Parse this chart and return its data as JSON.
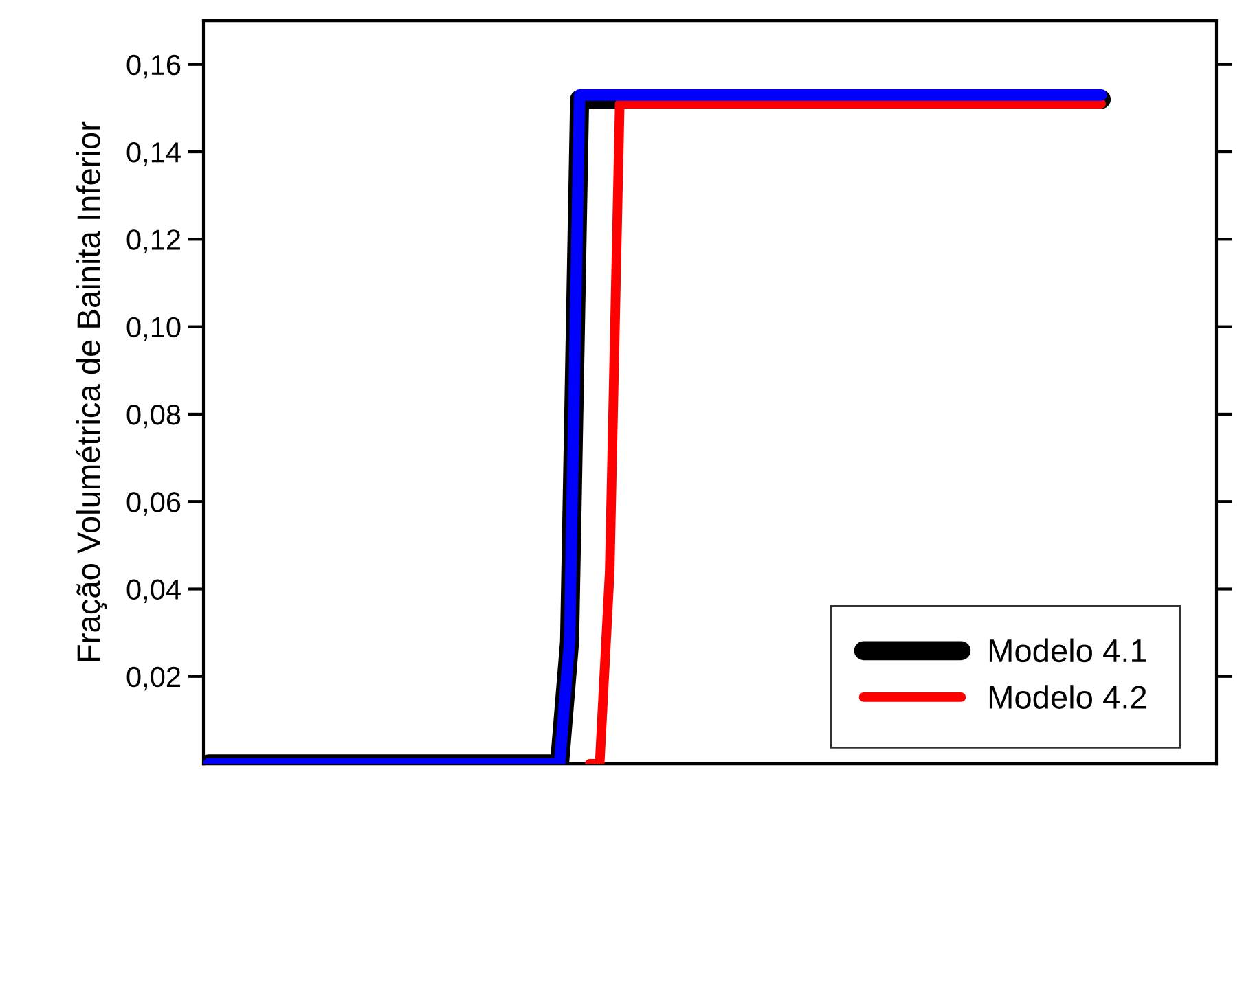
{
  "chart_data": {
    "type": "line",
    "ylabel": "Fração Volumétrica de Bainita Inferior",
    "categories": [
      null,
      null,
      null,
      null,
      null,
      null,
      null,
      null,
      null,
      null,
      null,
      null,
      null,
      null,
      null,
      null,
      null,
      null,
      null,
      null,
      null,
      null,
      null,
      null,
      null,
      null,
      null,
      null,
      null,
      null,
      null,
      null,
      null,
      null,
      null,
      null,
      null,
      null,
      null,
      null,
      null,
      null,
      null,
      null,
      null,
      null,
      null,
      null,
      null,
      null,
      null,
      null,
      null,
      null,
      null,
      null,
      null,
      null,
      null,
      null,
      null,
      null,
      null,
      null,
      null,
      null,
      null,
      null,
      null,
      null,
      null,
      null,
      null,
      null,
      null,
      null,
      null,
      null,
      null,
      null,
      null,
      null,
      null,
      null,
      null,
      null,
      null,
      null,
      null,
      null,
      null,
      null,
      null,
      null,
      null,
      null,
      null,
      null,
      null,
      null,
      null
    ],
    "series": [
      {
        "name": "Modelo 4.1",
        "color": "#000000",
        "values": [
          0,
          0,
          0,
          0,
          0,
          0,
          0,
          0,
          0,
          0,
          0,
          0,
          0,
          0,
          0,
          0,
          0,
          0,
          0,
          0,
          0,
          0,
          0,
          0,
          0,
          0,
          0,
          0,
          0,
          0,
          0,
          0,
          0,
          0,
          0,
          0,
          0.028,
          0.152,
          0.152,
          0.152,
          0.152,
          0.152,
          0.152,
          0.152,
          0.152,
          0.152,
          0.152,
          0.152,
          0.152,
          0.152,
          0.152,
          0.152,
          0.152,
          0.152,
          0.152,
          0.152,
          0.152,
          0.152,
          0.152,
          0.152,
          0.152,
          0.152,
          0.152,
          0.152,
          0.152,
          0.152,
          0.152,
          0.152,
          0.152,
          0.152,
          0.152,
          0.152,
          0.152,
          0.152,
          0.152,
          0.152,
          0.152,
          0.152,
          0.152,
          0.152,
          0.152,
          0.152,
          0.152,
          0.152,
          0.152,
          0.152,
          0.152,
          0.152,
          0.152,
          0.152,
          null,
          null,
          null,
          null,
          null,
          null,
          null,
          null,
          null,
          null,
          null
        ]
      },
      {
        "name": "Modelo 4.2",
        "color": "#ff0000",
        "values": [
          null,
          null,
          null,
          null,
          null,
          null,
          null,
          null,
          null,
          null,
          null,
          null,
          null,
          null,
          null,
          null,
          null,
          null,
          null,
          null,
          null,
          null,
          null,
          null,
          null,
          null,
          null,
          null,
          null,
          null,
          null,
          null,
          null,
          null,
          null,
          null,
          null,
          null,
          0,
          0,
          0.044,
          0.151,
          0.151,
          0.151,
          0.151,
          0.151,
          0.151,
          0.151,
          0.151,
          0.151,
          0.151,
          0.151,
          0.151,
          0.151,
          0.151,
          0.151,
          0.151,
          0.151,
          0.151,
          0.151,
          0.151,
          0.151,
          0.151,
          0.151,
          0.151,
          0.151,
          0.151,
          0.151,
          0.151,
          0.151,
          0.151,
          0.151,
          0.151,
          0.151,
          0.151,
          0.151,
          0.151,
          0.151,
          0.151,
          0.151,
          0.151,
          0.151,
          0.151,
          0.151,
          0.151,
          0.151,
          0.151,
          0.151,
          0.151,
          0.151,
          null,
          null,
          null,
          null,
          null,
          null,
          null,
          null,
          null,
          null,
          null
        ]
      },
      {
        "color": "#0000ff",
        "values": [
          0,
          0,
          0,
          0,
          0,
          0,
          0,
          0,
          0,
          0,
          0,
          0,
          0,
          0,
          0,
          0,
          0,
          0,
          0,
          0,
          0,
          0,
          0,
          0,
          0,
          0,
          0,
          0,
          0,
          0,
          0,
          0,
          0,
          0,
          0,
          0,
          0.028,
          0.153,
          0.153,
          0.153,
          0.153,
          0.153,
          0.153,
          0.153,
          0.153,
          0.153,
          0.153,
          0.153,
          0.153,
          0.153,
          0.153,
          0.153,
          0.153,
          0.153,
          0.153,
          0.153,
          0.153,
          0.153,
          0.153,
          0.153,
          0.153,
          0.153,
          0.153,
          0.153,
          0.153,
          0.153,
          0.153,
          0.153,
          0.153,
          0.153,
          0.153,
          0.153,
          0.153,
          0.153,
          0.153,
          0.153,
          0.153,
          0.153,
          0.153,
          0.153,
          0.153,
          0.153,
          0.153,
          0.153,
          0.153,
          0.153,
          0.153,
          0.153,
          0.153,
          0.153,
          null,
          null,
          null,
          null,
          null,
          null,
          null,
          null,
          null,
          null,
          null
        ]
      }
    ],
    "ylim": [
      0,
      0.17
    ],
    "yticks": [
      {
        "value": 0.02,
        "label": "0,02"
      },
      {
        "value": 0.04,
        "label": "0,04"
      },
      {
        "value": 0.06,
        "label": "0,06"
      },
      {
        "value": 0.08,
        "label": "0,08"
      },
      {
        "value": 0.1,
        "label": "0,10"
      },
      {
        "value": 0.12,
        "label": "0,12"
      },
      {
        "value": 0.14,
        "label": "0,14"
      },
      {
        "value": 0.16,
        "label": "0,16"
      }
    ],
    "tick_labels": "y",
    "legend": "bottom right",
    "grid": false
  }
}
